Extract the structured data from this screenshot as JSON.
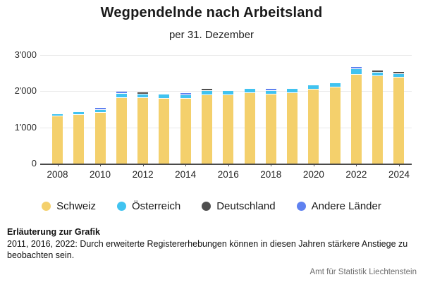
{
  "header": {
    "title": "Wegpendelnde nach Arbeitsland",
    "subtitle": "per 31. Dezember"
  },
  "chart_data": {
    "type": "bar",
    "stacked": true,
    "title": "Wegpendelnde nach Arbeitsland",
    "subtitle": "per 31. Dezember",
    "categories": [
      2008,
      2009,
      2010,
      2011,
      2012,
      2013,
      2014,
      2015,
      2016,
      2017,
      2018,
      2019,
      2020,
      2021,
      2022,
      2023,
      2024
    ],
    "series": [
      {
        "name": "Schweiz",
        "color": "#F4D06C",
        "values": [
          1310,
          1350,
          1410,
          1805,
          1815,
          1790,
          1790,
          1890,
          1890,
          1950,
          1910,
          1950,
          2045,
          2105,
          2450,
          2410,
          2375
        ]
      },
      {
        "name": "Österreich",
        "color": "#41C3F0",
        "values": [
          45,
          50,
          60,
          100,
          80,
          90,
          80,
          95,
          95,
          95,
          80,
          95,
          95,
          95,
          135,
          80,
          80
        ]
      },
      {
        "name": "Deutschland",
        "color": "#4F4F4F",
        "values": [
          0,
          0,
          0,
          0,
          40,
          0,
          0,
          40,
          0,
          0,
          0,
          0,
          0,
          0,
          0,
          40,
          40
        ]
      },
      {
        "name": "Andere Länder",
        "color": "#5F81F0",
        "values": [
          0,
          0,
          40,
          40,
          0,
          0,
          40,
          0,
          0,
          0,
          40,
          0,
          0,
          0,
          40,
          0,
          0
        ]
      }
    ],
    "ylim": [
      0,
      3000
    ],
    "yticks": [
      0,
      1000,
      2000,
      3000
    ],
    "ytick_labels": [
      "0",
      "1'000",
      "2'000",
      "3'000"
    ],
    "xtick_years": [
      2008,
      2010,
      2012,
      2014,
      2016,
      2018,
      2020,
      2022,
      2024
    ],
    "grid": true,
    "legend_position": "bottom",
    "segment_gap_color": "#ffffff"
  },
  "footer": {
    "note_title": "Erläuterung zur Grafik",
    "note_body": "2011, 2016, 2022: Durch erweiterte Registererhebungen können in diesen Jahren stärkere Anstiege zu beobachten sein.",
    "source": "Amt für Statistik Liechtenstein"
  }
}
